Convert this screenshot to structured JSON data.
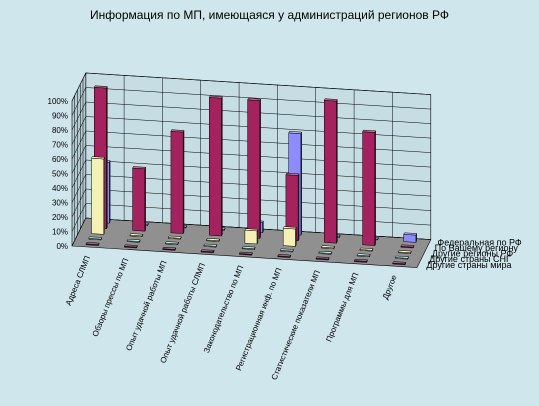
{
  "chart_data": {
    "type": "bar",
    "title": "Информация по МП, имеющаяся у администраций регионов РФ",
    "categories": [
      "Адреса СЛМП",
      "Обзоры прессы по МП",
      "Опыт удачной работы МП",
      "Опыт удачной работы СЛМП",
      "Законодательство по МП",
      "Регистрационная инф. по МП",
      "Статистические показатели МП",
      "Программы для МП",
      "Другое"
    ],
    "series": [
      {
        "name": "Другие страны мира",
        "color": "#6b1d4f",
        "values": [
          0,
          0,
          0,
          0,
          0,
          0,
          0,
          0,
          0
        ]
      },
      {
        "name": "Другие страны СНГ",
        "color": "#9fe0dc",
        "values": [
          0,
          0,
          0,
          0,
          0,
          0,
          0,
          0,
          0
        ]
      },
      {
        "name": "Другие  регионы РФ",
        "color": "#f5f0b4",
        "values": [
          52,
          0,
          0,
          0,
          9,
          12,
          0,
          0,
          0
        ]
      },
      {
        "name": "По Вашему региону",
        "color": "#a4235f",
        "values": [
          97,
          43,
          70,
          95,
          95,
          45,
          98,
          78,
          0
        ]
      },
      {
        "name": "Федеральная по РФ",
        "color": "#8c8cff",
        "values": [
          42,
          0,
          0,
          0,
          7,
          70,
          0,
          0,
          5
        ]
      }
    ],
    "y_ticks": [
      "0%",
      "10%",
      "20%",
      "30%",
      "40%",
      "50%",
      "60%",
      "70%",
      "80%",
      "90%",
      "100%"
    ],
    "ylim": [
      0,
      100
    ],
    "grid": true,
    "legend": "right"
  }
}
